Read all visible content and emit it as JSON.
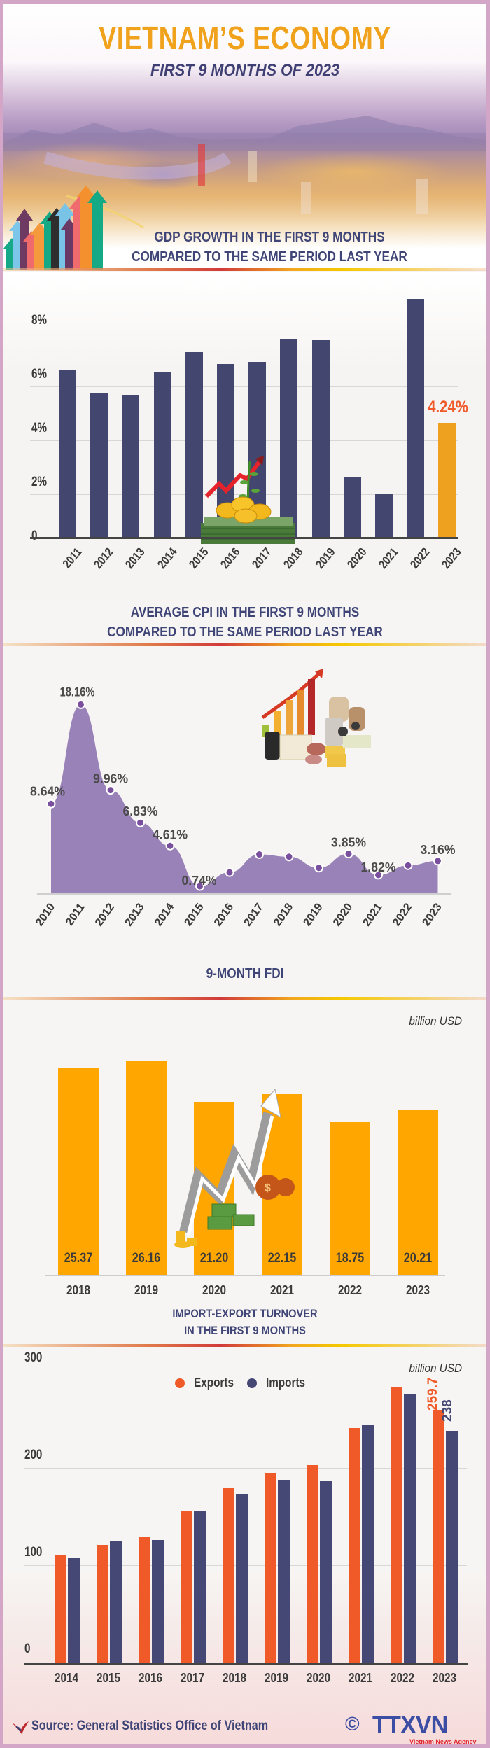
{
  "header": {
    "title": "VIETNAM’S ECONOMY",
    "subtitle": "FIRST 9 MONTHS OF 2023"
  },
  "colors": {
    "frame": "#d3a6c8",
    "title_orange": "#f0a21c",
    "navy": "#43466f",
    "gdp_highlight": "#eda11e",
    "cpi_fill": "#9982b8",
    "fdi_bar": "#ffa600",
    "exports": "#f05a28",
    "imports": "#454775",
    "highlight_red": "#f0592a"
  },
  "sections": {
    "gdp": {
      "heading_line1": "GDP GROWTH IN THE FIRST 9 MONTHS",
      "heading_line2": "COMPARED TO THE SAME PERIOD LAST YEAR",
      "highlight_label": "4.24%"
    },
    "cpi": {
      "heading_line1": "AVERAGE CPI IN THE FIRST 9 MONTHS",
      "heading_line2": "COMPARED TO THE SAME PERIOD LAST YEAR"
    },
    "fdi": {
      "heading": "9-MONTH FDI",
      "unit": "billion USD"
    },
    "trade": {
      "heading_line1": "IMPORT-EXPORT TURNOVER",
      "heading_line2": "IN THE FIRST 9 MONTHS",
      "unit": "billion USD",
      "legend_exports": "Exports",
      "legend_imports": "Imports",
      "label_2023_exports": "259.7",
      "label_2023_imports": "238"
    }
  },
  "footer": {
    "source": "Source: General Statistics Office of Vietnam",
    "copyright": "©",
    "logo": "TTXVN",
    "logo_sub": "Vietnam News Agency"
  },
  "chart_data": [
    {
      "type": "bar",
      "title": "GDP GROWTH IN THE FIRST 9 MONTHS COMPARED TO THE SAME PERIOD LAST YEAR",
      "categories": [
        "2011",
        "2012",
        "2013",
        "2014",
        "2015",
        "2016",
        "2017",
        "2018",
        "2019",
        "2020",
        "2021",
        "2022",
        "2023"
      ],
      "values": [
        6.2,
        5.34,
        5.26,
        6.12,
        6.85,
        6.41,
        6.49,
        7.35,
        7.3,
        2.21,
        1.58,
        8.84,
        4.24
      ],
      "yticks": [
        "0",
        "2%",
        "4%",
        "6%",
        "8%"
      ],
      "ylim": [
        0,
        9
      ],
      "grid": true,
      "annotations": [
        {
          "category": "2023",
          "text": "4.24%"
        }
      ],
      "xlabel": "",
      "ylabel": ""
    },
    {
      "type": "area",
      "title": "AVERAGE CPI IN THE FIRST 9 MONTHS COMPARED TO THE SAME PERIOD LAST YEAR",
      "categories": [
        "2010",
        "2011",
        "2012",
        "2013",
        "2014",
        "2015",
        "2016",
        "2017",
        "2018",
        "2019",
        "2020",
        "2021",
        "2022",
        "2023"
      ],
      "values": [
        8.64,
        18.16,
        9.96,
        6.83,
        4.61,
        0.74,
        2.07,
        3.79,
        3.57,
        2.5,
        3.85,
        1.82,
        2.73,
        3.16
      ],
      "data_labels": [
        "8.64%",
        "18.16%",
        "9.96%",
        "6.83%",
        "4.61%",
        "0.74%",
        "",
        "",
        "",
        "",
        "3.85%",
        "1.82%",
        "",
        "3.16%"
      ],
      "grid": false,
      "xlabel": "",
      "ylabel": ""
    },
    {
      "type": "bar",
      "title": "9-MONTH FDI",
      "unit": "billion USD",
      "categories": [
        "2018",
        "2019",
        "2020",
        "2021",
        "2022",
        "2023"
      ],
      "values": [
        25.37,
        26.16,
        21.2,
        22.15,
        18.75,
        20.21
      ],
      "data_labels": [
        "25.37",
        "26.16",
        "21.20",
        "22.15",
        "18.75",
        "20.21"
      ],
      "grid": false,
      "xlabel": "",
      "ylabel": ""
    },
    {
      "type": "bar",
      "title": "IMPORT-EXPORT TURNOVER IN THE FIRST 9 MONTHS",
      "unit": "billion USD",
      "categories": [
        "2014",
        "2015",
        "2016",
        "2017",
        "2018",
        "2019",
        "2020",
        "2021",
        "2022",
        "2023"
      ],
      "series": [
        {
          "name": "Exports",
          "values": [
            110.6,
            120.9,
            129.3,
            155.6,
            179.7,
            195.2,
            202.9,
            241.2,
            282.6,
            259.7
          ]
        },
        {
          "name": "Imports",
          "values": [
            108.0,
            124.4,
            126.0,
            155.6,
            173.6,
            187.8,
            186.2,
            244.4,
            275.9,
            238.0
          ]
        }
      ],
      "yticks": [
        "0",
        "100",
        "200",
        "300"
      ],
      "ylim": [
        0,
        300
      ],
      "grid": true,
      "legend_position": "top",
      "annotations": [
        {
          "category": "2023",
          "series": "Exports",
          "text": "259.7"
        },
        {
          "category": "2023",
          "series": "Imports",
          "text": "238"
        }
      ],
      "xlabel": "",
      "ylabel": ""
    }
  ]
}
